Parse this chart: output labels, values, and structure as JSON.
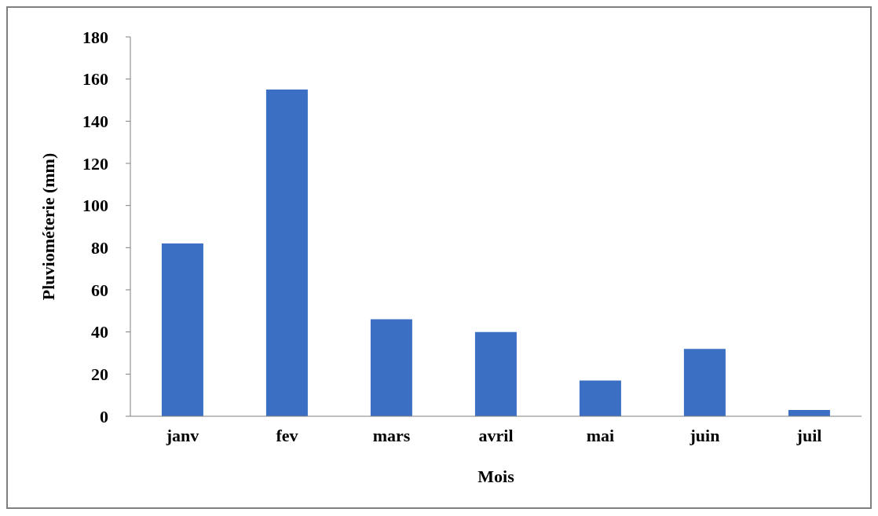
{
  "chart_data": {
    "type": "bar",
    "xlabel": "Mois",
    "ylabel": "Pluviométerie (mm)",
    "categories": [
      "janv",
      "fev",
      "mars",
      "avril",
      "mai",
      "juin",
      "juil"
    ],
    "values": [
      82,
      155,
      46,
      40,
      17,
      32,
      3
    ],
    "color": "#3a6fc4",
    "ylim": [
      0,
      180
    ],
    "yticks": [
      0,
      20,
      40,
      60,
      80,
      100,
      120,
      140,
      160,
      180
    ]
  }
}
